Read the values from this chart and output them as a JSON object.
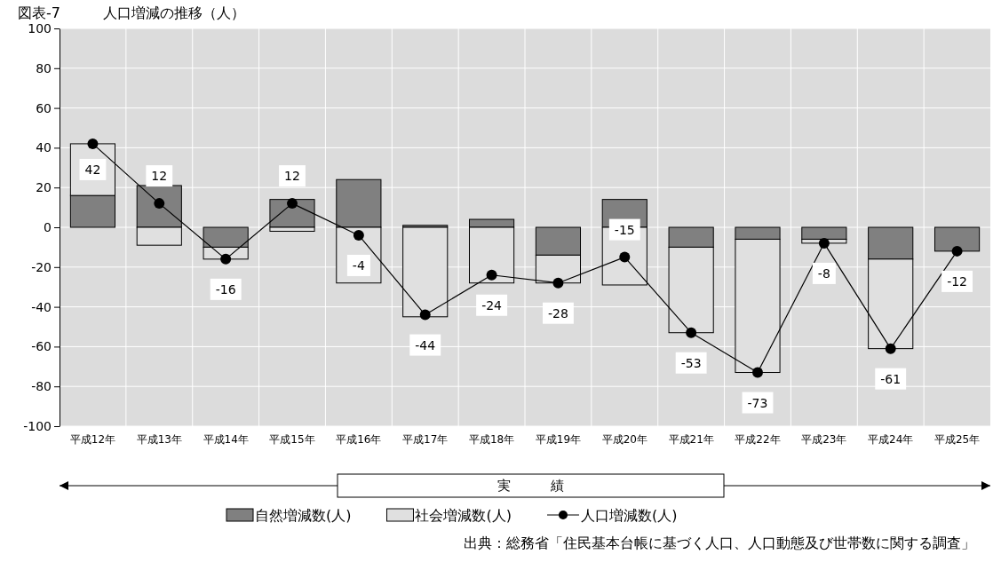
{
  "chart_data": {
    "type": "bar",
    "title": "図表-7　　　人口増減の推移（人）",
    "stacked": true,
    "categories": [
      "平成12年",
      "平成13年",
      "平成14年",
      "平成15年",
      "平成16年",
      "平成17年",
      "平成18年",
      "平成19年",
      "平成20年",
      "平成21年",
      "平成22年",
      "平成23年",
      "平成24年",
      "平成25年"
    ],
    "series": [
      {
        "name": "自然増減数(人)",
        "color": "#808080",
        "values": [
          16,
          21,
          -10,
          14,
          24,
          1,
          4,
          -14,
          14,
          -10,
          -6,
          -6,
          -16,
          -12
        ]
      },
      {
        "name": "社会増減数(人)",
        "color": "#e0e0e0",
        "values": [
          26,
          -9,
          -6,
          -2,
          -28,
          -45,
          -28,
          -14,
          -29,
          -43,
          -67,
          -2,
          -45,
          0
        ]
      },
      {
        "name": "人口増減数(人)",
        "type": "line",
        "color": "#000000",
        "marker": "circle",
        "values": [
          42,
          12,
          -16,
          12,
          -4,
          -44,
          -24,
          -28,
          -15,
          -53,
          -73,
          -8,
          -61,
          -12
        ],
        "value_labels": [
          "42",
          "12",
          "-16",
          "12",
          "-4",
          "-44",
          "-24",
          "-28",
          "-15",
          "-53",
          "-73",
          "-8",
          "-61",
          "-12"
        ]
      }
    ],
    "ylim": [
      -100,
      100
    ],
    "yticks": [
      -100,
      -80,
      -60,
      -40,
      -20,
      0,
      20,
      40,
      60,
      80,
      100
    ],
    "grid": true,
    "legend": "bottom",
    "annotations": [
      "実　　　績",
      "出典：総務省「住民基本台帳に基づく人口、人口動態及び世帯数に関する調査」"
    ]
  }
}
